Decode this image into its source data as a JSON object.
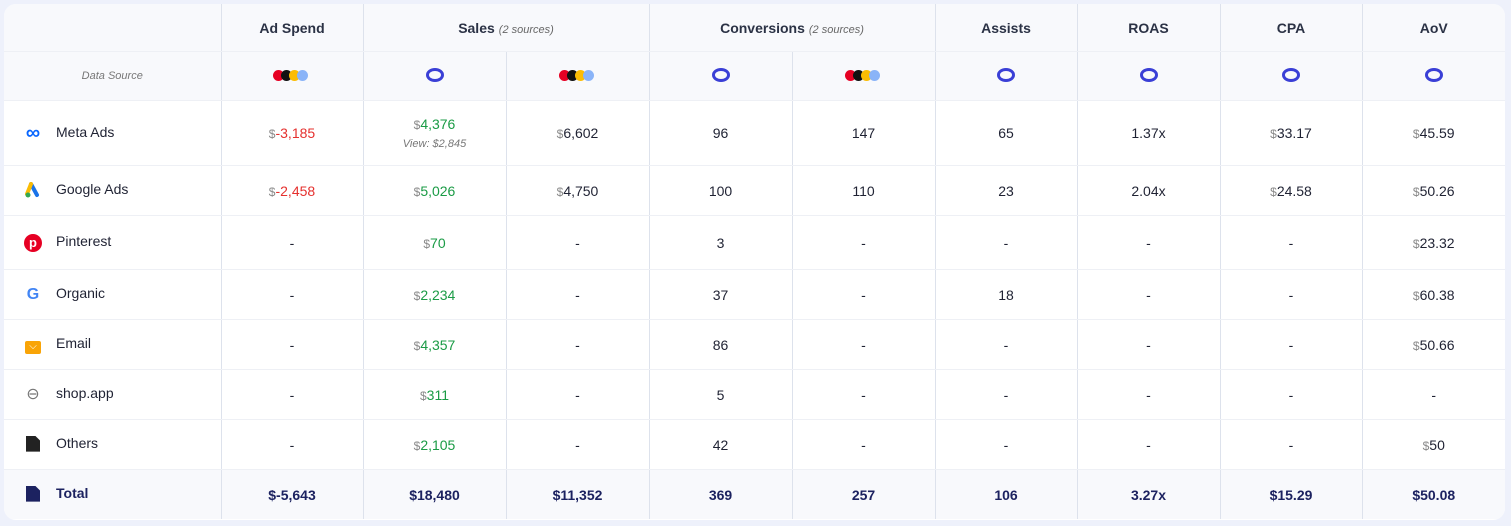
{
  "header": {
    "data_source": "Data Source",
    "columns": [
      {
        "label": "Ad Spend",
        "sub": ""
      },
      {
        "label": "Sales",
        "sub": "(2 sources)"
      },
      {
        "label": "Conversions",
        "sub": "(2 sources)"
      },
      {
        "label": "Assists",
        "sub": ""
      },
      {
        "label": "ROAS",
        "sub": ""
      },
      {
        "label": "CPA",
        "sub": ""
      },
      {
        "label": "AoV",
        "sub": ""
      }
    ]
  },
  "sources": [
    "multi-platform-icon",
    "triple-whale-icon",
    "multi-platform-icon",
    "triple-whale-icon",
    "multi-platform-icon",
    "triple-whale-icon",
    "triple-whale-icon",
    "triple-whale-icon",
    "triple-whale-icon"
  ],
  "rows": [
    {
      "name": "Meta Ads",
      "icon": "meta-icon",
      "cells": [
        {
          "p": "$",
          "v": "-3,185",
          "c": "red"
        },
        {
          "p": "$",
          "v": "4,376",
          "c": "green",
          "view": "View: $2,845"
        },
        {
          "p": "$",
          "v": "6,602"
        },
        {
          "v": "96"
        },
        {
          "v": "147"
        },
        {
          "v": "65"
        },
        {
          "v": "1.37x"
        },
        {
          "p": "$",
          "v": "33.17"
        },
        {
          "p": "$",
          "v": "45.59"
        }
      ]
    },
    {
      "name": "Google Ads",
      "icon": "google-ads-icon",
      "cells": [
        {
          "p": "$",
          "v": "-2,458",
          "c": "red"
        },
        {
          "p": "$",
          "v": "5,026",
          "c": "green"
        },
        {
          "p": "$",
          "v": "4,750"
        },
        {
          "v": "100"
        },
        {
          "v": "110"
        },
        {
          "v": "23"
        },
        {
          "v": "2.04x"
        },
        {
          "p": "$",
          "v": "24.58"
        },
        {
          "p": "$",
          "v": "50.26"
        }
      ]
    },
    {
      "name": "Pinterest",
      "icon": "pinterest-icon",
      "cells": [
        {
          "v": "-"
        },
        {
          "p": "$",
          "v": "70",
          "c": "green"
        },
        {
          "v": "-"
        },
        {
          "v": "3"
        },
        {
          "v": "-"
        },
        {
          "v": "-"
        },
        {
          "v": "-"
        },
        {
          "v": "-"
        },
        {
          "p": "$",
          "v": "23.32"
        }
      ]
    },
    {
      "name": "Organic",
      "icon": "google-icon",
      "cells": [
        {
          "v": "-"
        },
        {
          "p": "$",
          "v": "2,234",
          "c": "green"
        },
        {
          "v": "-"
        },
        {
          "v": "37"
        },
        {
          "v": "-"
        },
        {
          "v": "18"
        },
        {
          "v": "-"
        },
        {
          "v": "-"
        },
        {
          "p": "$",
          "v": "60.38"
        }
      ]
    },
    {
      "name": "Email",
      "icon": "email-icon",
      "cells": [
        {
          "v": "-"
        },
        {
          "p": "$",
          "v": "4,357",
          "c": "green"
        },
        {
          "v": "-"
        },
        {
          "v": "86"
        },
        {
          "v": "-"
        },
        {
          "v": "-"
        },
        {
          "v": "-"
        },
        {
          "v": "-"
        },
        {
          "p": "$",
          "v": "50.66"
        }
      ]
    },
    {
      "name": "shop.app",
      "icon": "link-icon",
      "cells": [
        {
          "v": "-"
        },
        {
          "p": "$",
          "v": "311",
          "c": "green"
        },
        {
          "v": "-"
        },
        {
          "v": "5"
        },
        {
          "v": "-"
        },
        {
          "v": "-"
        },
        {
          "v": "-"
        },
        {
          "v": "-"
        },
        {
          "v": "-"
        }
      ]
    },
    {
      "name": "Others",
      "icon": "document-icon",
      "cells": [
        {
          "v": "-"
        },
        {
          "p": "$",
          "v": "2,105",
          "c": "green"
        },
        {
          "v": "-"
        },
        {
          "v": "42"
        },
        {
          "v": "-"
        },
        {
          "v": "-"
        },
        {
          "v": "-"
        },
        {
          "v": "-"
        },
        {
          "p": "$",
          "v": "50"
        }
      ]
    }
  ],
  "total": {
    "name": "Total",
    "cells": [
      "$-5,643",
      "$18,480",
      "$11,352",
      "369",
      "257",
      "106",
      "3.27x",
      "$15.29",
      "$50.08"
    ]
  }
}
